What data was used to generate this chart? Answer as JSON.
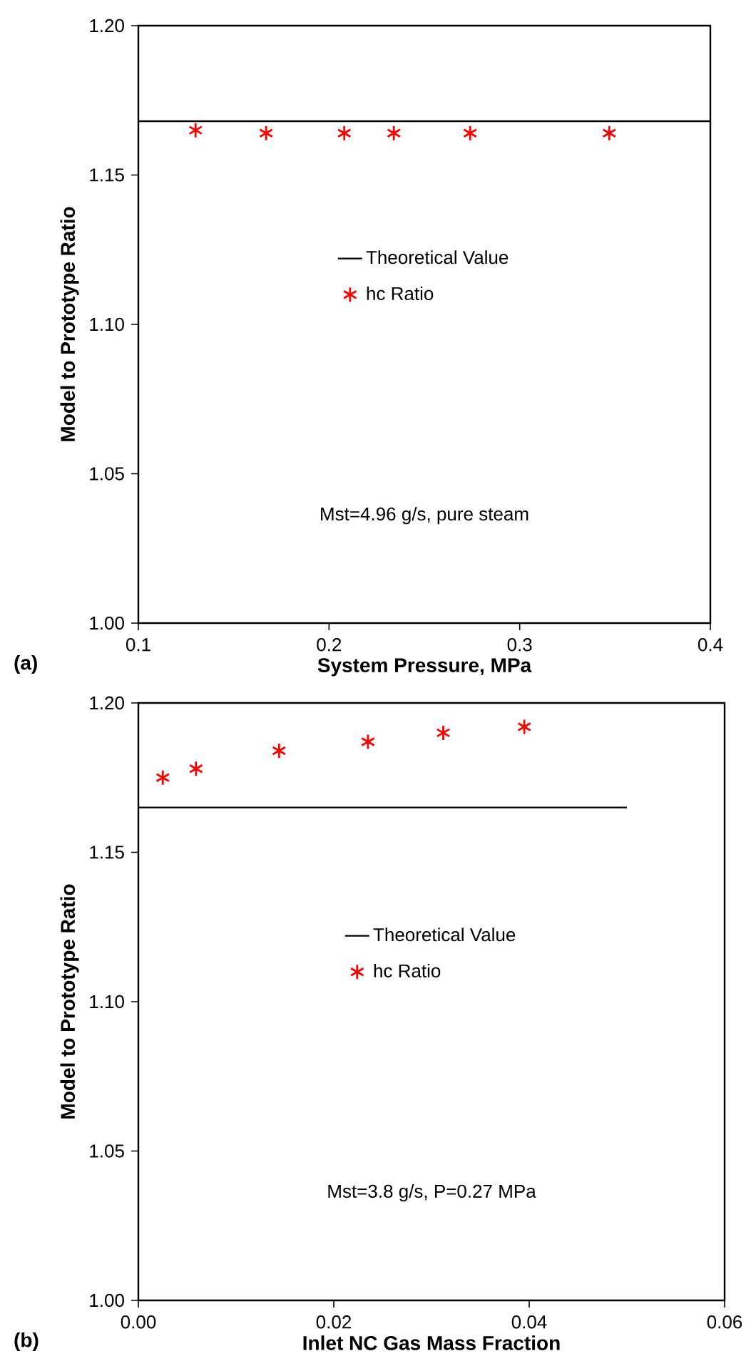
{
  "chart_data": [
    {
      "type": "scatter",
      "xlabel": "System Pressure, MPa",
      "ylabel": "Model to Prototype Ratio",
      "xlim": [
        0.1,
        0.4
      ],
      "ylim": [
        1.0,
        1.2
      ],
      "xticks": [
        0.1,
        0.2,
        0.3,
        0.4
      ],
      "yticks": [
        {
          "value": 1.0,
          "label": "1.00"
        },
        {
          "value": 1.05,
          "label": "1.05"
        },
        {
          "value": 1.1,
          "label": "1.10"
        },
        {
          "value": 1.15,
          "label": "1.15"
        },
        {
          "value": 1.2,
          "label": "1.20"
        }
      ],
      "legend": "center",
      "annotations": [
        "Mst=4.96 g/s, pure steam",
        "(a)"
      ],
      "series": [
        {
          "name": "Theoretical Value",
          "type": "line",
          "color": "#000000",
          "marker": "none",
          "x": [
            0.1,
            0.4
          ],
          "values": [
            1.168,
            1.168
          ]
        },
        {
          "name": "hc Ratio",
          "color": "#ff0000",
          "marker": "cross",
          "x": [
            0.13,
            0.167,
            0.208,
            0.234,
            0.274,
            0.347
          ],
          "values": [
            1.165,
            1.164,
            1.164,
            1.164,
            1.164,
            1.164
          ]
        }
      ]
    },
    {
      "type": "scatter",
      "xlabel": "Inlet NC Gas Mass Fraction",
      "ylabel": "Model to Prototype Ratio",
      "xlim": [
        0.0,
        0.06
      ],
      "ylim": [
        1.0,
        1.2
      ],
      "xticks": [
        {
          "value": 0.0,
          "label": "0.00"
        },
        {
          "value": 0.02,
          "label": "0.02"
        },
        {
          "value": 0.04,
          "label": "0.04"
        },
        {
          "value": 0.06,
          "label": "0.06"
        }
      ],
      "yticks": [
        {
          "value": 1.0,
          "label": "1.00"
        },
        {
          "value": 1.05,
          "label": "1.05"
        },
        {
          "value": 1.1,
          "label": "1.10"
        },
        {
          "value": 1.15,
          "label": "1.15"
        },
        {
          "value": 1.2,
          "label": "1.20"
        }
      ],
      "legend": "center",
      "annotations": [
        "Mst=3.8 g/s, P=0.27 MPa",
        "(b)"
      ],
      "series": [
        {
          "name": "Theoretical Value",
          "type": "line",
          "color": "#000000",
          "marker": "none",
          "x": [
            0.0,
            0.05
          ],
          "values": [
            1.165,
            1.165
          ]
        },
        {
          "name": "hc Ratio",
          "color": "#ff0000",
          "marker": "cross",
          "x": [
            0.0025,
            0.0059,
            0.0144,
            0.0235,
            0.0312,
            0.0395
          ],
          "values": [
            1.175,
            1.178,
            1.184,
            1.187,
            1.19,
            1.192
          ]
        }
      ]
    }
  ]
}
